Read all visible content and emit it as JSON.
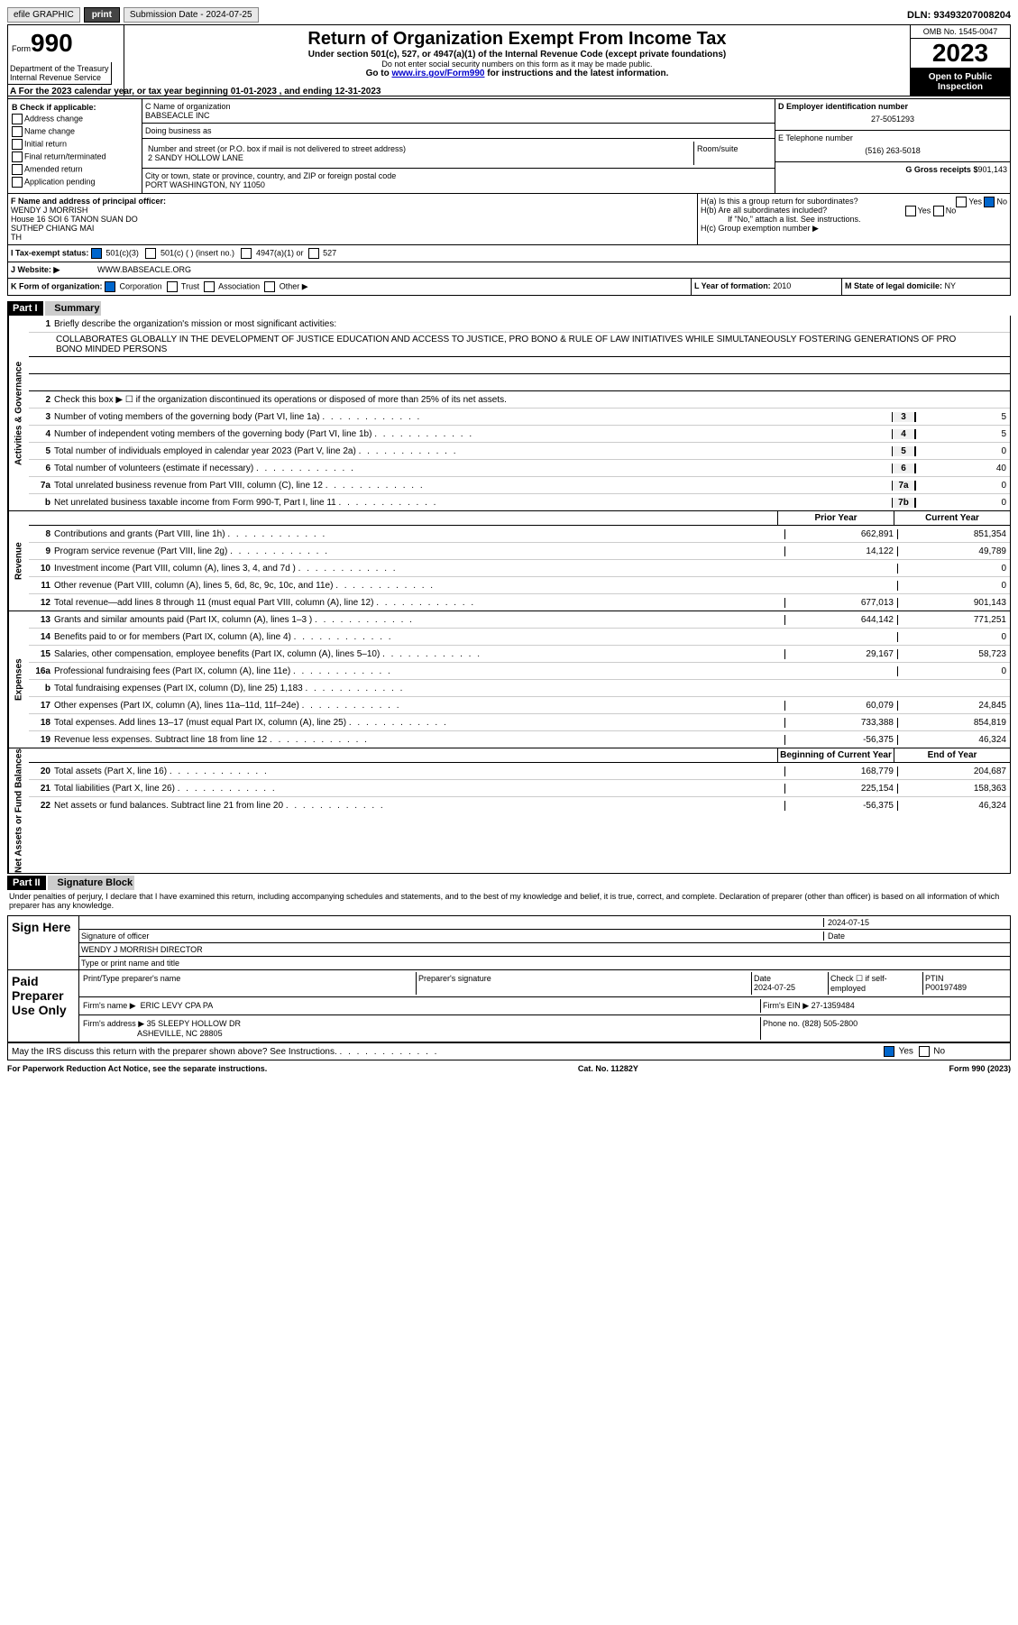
{
  "topbar": {
    "efile": "efile GRAPHIC",
    "print": "print",
    "subdate_label": "Submission Date - 2024-07-25",
    "dln": "DLN: 93493207008204"
  },
  "header": {
    "form_label": "Form",
    "form_num": "990",
    "title": "Return of Organization Exempt From Income Tax",
    "subtitle": "Under section 501(c), 527, or 4947(a)(1) of the Internal Revenue Code (except private foundations)",
    "ssn_note": "Do not enter social security numbers on this form as it may be made public.",
    "goto": "Go to ",
    "goto_link": "www.irs.gov/Form990",
    "goto_rest": " for instructions and the latest information.",
    "dept": "Department of the Treasury Internal Revenue Service",
    "omb": "OMB No. 1545-0047",
    "year": "2023",
    "otp": "Open to Public Inspection"
  },
  "rowA": "A For the 2023 calendar year, or tax year beginning 01-01-2023    , and ending 12-31-2023",
  "colB": {
    "label": "B Check if applicable:",
    "items": [
      "Address change",
      "Name change",
      "Initial return",
      "Final return/terminated",
      "Amended return",
      "Application pending"
    ]
  },
  "colC": {
    "name_label": "C Name of organization",
    "name": "BABSEACLE INC",
    "dba_label": "Doing business as",
    "dba": "",
    "addr_label": "Number and street (or P.O. box if mail is not delivered to street address)",
    "room_label": "Room/suite",
    "addr": "2 SANDY HOLLOW LANE",
    "city_label": "City or town, state or province, country, and ZIP or foreign postal code",
    "city": "PORT WASHINGTON, NY  11050"
  },
  "colD": {
    "ein_label": "D Employer identification number",
    "ein": "27-5051293",
    "tel_label": "E Telephone number",
    "tel": "(516) 263-5018",
    "gross_label": "G Gross receipts $",
    "gross": "901,143"
  },
  "rowF": {
    "label": "F Name and address of principal officer:",
    "name": "WENDY J MORRISH",
    "addr1": "House 16 SOI 6 TANON SUAN DO",
    "addr2": "SUTHEP CHIANG MAI",
    "addr3": "TH"
  },
  "rowH": {
    "ha": "H(a)  Is this a group return for subordinates?",
    "hb": "H(b)  Are all subordinates included?",
    "hb_note": "If \"No,\" attach a list. See instructions.",
    "hc": "H(c)  Group exemption number ▶",
    "yes": "Yes",
    "no": "No"
  },
  "rowI": {
    "label": "I   Tax-exempt status:",
    "opt1": "501(c)(3)",
    "opt2": "501(c) (  ) (insert no.)",
    "opt3": "4947(a)(1) or",
    "opt4": "527"
  },
  "rowJ": {
    "label": "J   Website: ▶",
    "value": "WWW.BABSEACLE.ORG"
  },
  "rowK": {
    "label": "K Form of organization:",
    "opts": [
      "Corporation",
      "Trust",
      "Association",
      "Other ▶"
    ],
    "l_label": "L Year of formation: ",
    "l_val": "2010",
    "m_label": "M State of legal domicile: ",
    "m_val": "NY"
  },
  "part1": {
    "title": "Part I",
    "name": "Summary",
    "l1_label": "Briefly describe the organization's mission or most significant activities:",
    "l1_text": "COLLABORATES GLOBALLY IN THE DEVELOPMENT OF JUSTICE EDUCATION AND ACCESS TO JUSTICE, PRO BONO & RULE OF LAW INITIATIVES WHILE SIMULTANEOUSLY FOSTERING GENERATIONS OF PRO BONO MINDED PERSONS",
    "l2": "Check this box ▶ ☐ if the organization discontinued its operations or disposed of more than 25% of its net assets.",
    "lines_gov": [
      {
        "n": "3",
        "t": "Number of voting members of the governing body (Part VI, line 1a)",
        "b": "3",
        "v": "5"
      },
      {
        "n": "4",
        "t": "Number of independent voting members of the governing body (Part VI, line 1b)",
        "b": "4",
        "v": "5"
      },
      {
        "n": "5",
        "t": "Total number of individuals employed in calendar year 2023 (Part V, line 2a)",
        "b": "5",
        "v": "0"
      },
      {
        "n": "6",
        "t": "Total number of volunteers (estimate if necessary)",
        "b": "6",
        "v": "40"
      },
      {
        "n": "7a",
        "t": "Total unrelated business revenue from Part VIII, column (C), line 12",
        "b": "7a",
        "v": "0"
      },
      {
        "n": "b",
        "t": "Net unrelated business taxable income from Form 990-T, Part I, line 11",
        "b": "7b",
        "v": "0"
      }
    ],
    "col_prior": "Prior Year",
    "col_current": "Current Year",
    "lines_rev": [
      {
        "n": "8",
        "t": "Contributions and grants (Part VIII, line 1h)",
        "p": "662,891",
        "c": "851,354"
      },
      {
        "n": "9",
        "t": "Program service revenue (Part VIII, line 2g)",
        "p": "14,122",
        "c": "49,789"
      },
      {
        "n": "10",
        "t": "Investment income (Part VIII, column (A), lines 3, 4, and 7d )",
        "p": "",
        "c": "0"
      },
      {
        "n": "11",
        "t": "Other revenue (Part VIII, column (A), lines 5, 6d, 8c, 9c, 10c, and 11e)",
        "p": "",
        "c": "0"
      },
      {
        "n": "12",
        "t": "Total revenue—add lines 8 through 11 (must equal Part VIII, column (A), line 12)",
        "p": "677,013",
        "c": "901,143"
      }
    ],
    "lines_exp": [
      {
        "n": "13",
        "t": "Grants and similar amounts paid (Part IX, column (A), lines 1–3 )",
        "p": "644,142",
        "c": "771,251"
      },
      {
        "n": "14",
        "t": "Benefits paid to or for members (Part IX, column (A), line 4)",
        "p": "",
        "c": "0"
      },
      {
        "n": "15",
        "t": "Salaries, other compensation, employee benefits (Part IX, column (A), lines 5–10)",
        "p": "29,167",
        "c": "58,723"
      },
      {
        "n": "16a",
        "t": "Professional fundraising fees (Part IX, column (A), line 11e)",
        "p": "",
        "c": "0"
      },
      {
        "n": "b",
        "t": "Total fundraising expenses (Part IX, column (D), line 25) 1,183",
        "p": "shaded",
        "c": "shaded"
      },
      {
        "n": "17",
        "t": "Other expenses (Part IX, column (A), lines 11a–11d, 11f–24e)",
        "p": "60,079",
        "c": "24,845"
      },
      {
        "n": "18",
        "t": "Total expenses. Add lines 13–17 (must equal Part IX, column (A), line 25)",
        "p": "733,388",
        "c": "854,819"
      },
      {
        "n": "19",
        "t": "Revenue less expenses. Subtract line 18 from line 12",
        "p": "-56,375",
        "c": "46,324"
      }
    ],
    "col_begin": "Beginning of Current Year",
    "col_end": "End of Year",
    "lines_net": [
      {
        "n": "20",
        "t": "Total assets (Part X, line 16)",
        "p": "168,779",
        "c": "204,687"
      },
      {
        "n": "21",
        "t": "Total liabilities (Part X, line 26)",
        "p": "225,154",
        "c": "158,363"
      },
      {
        "n": "22",
        "t": "Net assets or fund balances. Subtract line 21 from line 20",
        "p": "-56,375",
        "c": "46,324"
      }
    ],
    "sidebar_gov": "Activities & Governance",
    "sidebar_rev": "Revenue",
    "sidebar_exp": "Expenses",
    "sidebar_net": "Net Assets or Fund Balances"
  },
  "part2": {
    "title": "Part II",
    "name": "Signature Block",
    "penalty": "Under penalties of perjury, I declare that I have examined this return, including accompanying schedules and statements, and to the best of my knowledge and belief, it is true, correct, and complete. Declaration of preparer (other than officer) is based on all information of which preparer has any knowledge.",
    "sign_here": "Sign Here",
    "sig_officer": "Signature of officer",
    "sig_date": "2024-07-15",
    "sig_name": "WENDY J MORRISH  DIRECTOR",
    "sig_type": "Type or print name and title",
    "date_label": "Date",
    "paid": "Paid Preparer Use Only",
    "prep_name_label": "Print/Type preparer's name",
    "prep_sig_label": "Preparer's signature",
    "prep_date": "2024-07-25",
    "prep_check": "Check ☐ if self-employed",
    "ptin_label": "PTIN",
    "ptin": "P00197489",
    "firm_name_label": "Firm's name    ▶",
    "firm_name": "ERIC LEVY CPA PA",
    "firm_ein_label": "Firm's EIN ▶",
    "firm_ein": "27-1359484",
    "firm_addr_label": "Firm's address ▶",
    "firm_addr1": "35 SLEEPY HOLLOW DR",
    "firm_addr2": "ASHEVILLE, NC  28805",
    "phone_label": "Phone no.",
    "phone": "(828) 505-2800",
    "discuss": "May the IRS discuss this return with the preparer shown above? See Instructions."
  },
  "footer": {
    "left": "For Paperwork Reduction Act Notice, see the separate instructions.",
    "mid": "Cat. No. 11282Y",
    "right": "Form 990 (2023)"
  }
}
